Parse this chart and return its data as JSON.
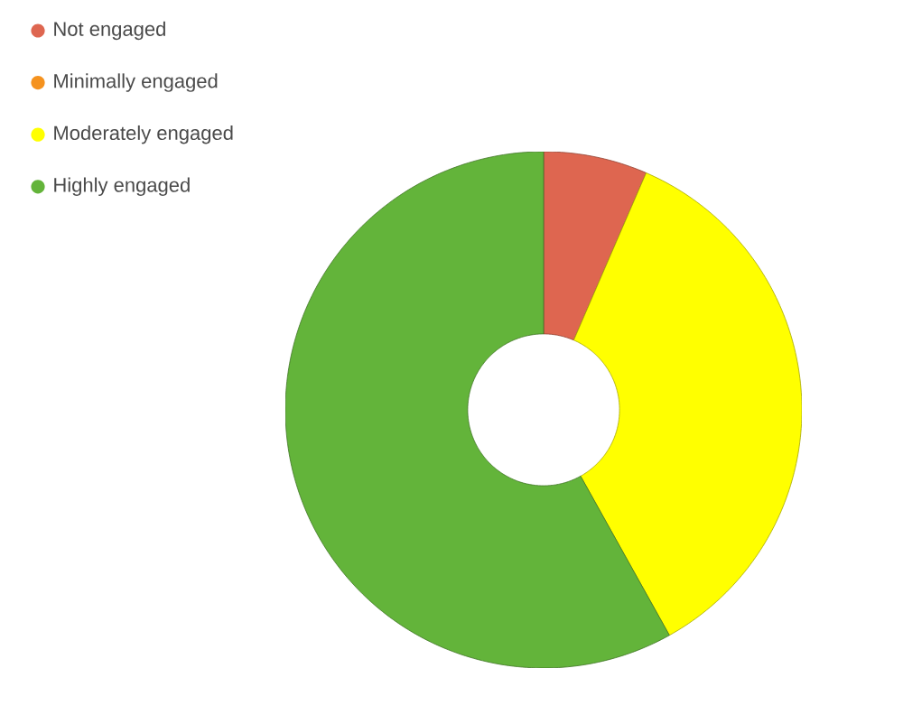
{
  "chart_data": {
    "type": "donut",
    "categories": [
      "Not engaged",
      "Minimally engaged",
      "Moderately engaged",
      "Highly engaged"
    ],
    "values": [
      6.5,
      0,
      35.4,
      58.1
    ],
    "colors": [
      "#de6650",
      "#f5921e",
      "#ffff00",
      "#63b43a"
    ],
    "legend": "top left"
  }
}
